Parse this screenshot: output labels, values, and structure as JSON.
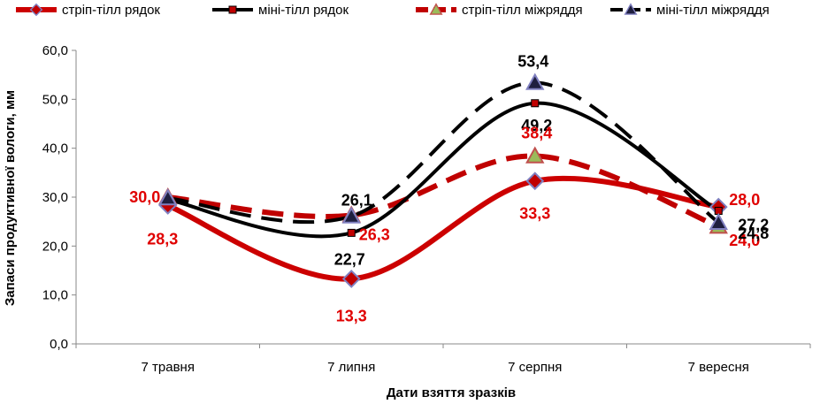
{
  "chart_data": {
    "type": "line",
    "title": "",
    "xlabel": "Дати взяття зразків",
    "ylabel": "Запаси продуктивної вологи, мм",
    "ylim": [
      0,
      60
    ],
    "yticks": [
      "0,0",
      "10,0",
      "20,0",
      "30,0",
      "40,0",
      "50,0",
      "60,0"
    ],
    "categories": [
      "7 травня",
      "7 липня",
      "7 серпня",
      "7 вересня"
    ],
    "legend_position": "top",
    "grid": false,
    "series": [
      {
        "name": "стріп-тілл рядок",
        "values": [
          28.3,
          13.3,
          33.3,
          28.0
        ],
        "labels": [
          "28,3",
          "13,3",
          "33,3",
          "28,0"
        ],
        "color": "#cc0000",
        "dash": "solid",
        "marker": "diamond",
        "marker_fill": "#c00000",
        "marker_stroke": "#7f7fc0",
        "label_color": "#e00000"
      },
      {
        "name": "міні-тілл рядок",
        "values": [
          29.5,
          22.7,
          49.2,
          27.2
        ],
        "labels": [
          "",
          "22,7",
          "49,2",
          "27,2"
        ],
        "color": "#000000",
        "dash": "solid",
        "marker": "square",
        "marker_fill": "#c00000",
        "marker_stroke": "#000000",
        "label_color": "#000000"
      },
      {
        "name": "стріп-тілл міжряддя",
        "values": [
          30.0,
          26.3,
          38.4,
          24.0
        ],
        "labels": [
          "30,0",
          "26,3",
          "38,4",
          "24,0"
        ],
        "color": "#c00000",
        "dash": "dashed",
        "marker": "triangle",
        "marker_fill": "#9bbb59",
        "marker_stroke": "#c0504d",
        "label_color": "#e00000"
      },
      {
        "name": "міні-тілл міжряддя",
        "values": [
          29.8,
          26.1,
          53.4,
          24.8
        ],
        "labels": [
          "",
          "26,1",
          "53,4",
          "24,8"
        ],
        "color": "#000000",
        "dash": "dashed",
        "marker": "triangle",
        "marker_fill": "#1f1f3f",
        "marker_stroke": "#8080c0",
        "label_color": "#000000"
      }
    ]
  }
}
